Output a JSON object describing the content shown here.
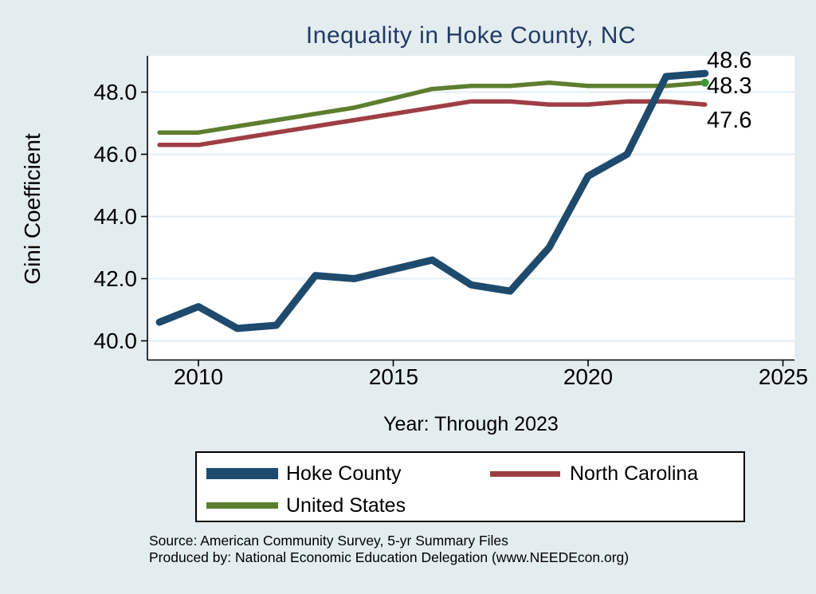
{
  "background_color": "#e3edf0",
  "title": "Inequality in Hoke County, NC",
  "title_color": "#233a64",
  "y_axis": {
    "label": "Gini Coefficient",
    "ticks": [
      "48.0",
      "46.0",
      "44.0",
      "42.0",
      "40.0"
    ],
    "tick_values": [
      48,
      46,
      44,
      42,
      40
    ]
  },
  "x_axis": {
    "label": "Year: Through 2023",
    "ticks": [
      "2010",
      "2015",
      "2020",
      "2025"
    ],
    "tick_values": [
      2010,
      2015,
      2020,
      2025
    ]
  },
  "legend": {
    "items": [
      {
        "label": "Hoke County",
        "color": "#1E4A6E"
      },
      {
        "label": "North Carolina",
        "color": "#9E3E44"
      },
      {
        "label": "United States",
        "color": "#5D7E2F"
      }
    ]
  },
  "source": {
    "line1": "Source: American Community Survey, 5-yr Summary Files",
    "line2": "Produced by: National Economic Education Delegation (www.NEEDEcon.org)"
  },
  "chart_data": {
    "type": "line",
    "title": "Inequality in Hoke County, NC",
    "xlabel": "Year: Through 2023",
    "ylabel": "Gini Coefficient",
    "x": [
      2009,
      2010,
      2011,
      2012,
      2013,
      2014,
      2015,
      2016,
      2017,
      2018,
      2019,
      2020,
      2021,
      2022,
      2023
    ],
    "series": [
      {
        "name": "Hoke County",
        "color": "#1E4A6E",
        "line_width": 9,
        "values": [
          40.6,
          41.1,
          40.4,
          40.5,
          42.1,
          42.0,
          42.3,
          42.6,
          41.8,
          41.6,
          43.0,
          45.3,
          46.0,
          48.5,
          48.6
        ],
        "end_label": "48.6",
        "end_marker": false
      },
      {
        "name": "North Carolina",
        "color": "#9E3E44",
        "line_width": 5.5,
        "values": [
          46.3,
          46.3,
          46.5,
          46.7,
          46.9,
          47.1,
          47.3,
          47.5,
          47.7,
          47.7,
          47.6,
          47.6,
          47.7,
          47.7,
          47.6
        ],
        "end_label": "47.6",
        "end_marker": false
      },
      {
        "name": "United States",
        "color": "#5D7E2F",
        "line_width": 5.5,
        "values": [
          46.7,
          46.7,
          46.9,
          47.1,
          47.3,
          47.5,
          47.8,
          48.1,
          48.2,
          48.2,
          48.3,
          48.2,
          48.2,
          48.2,
          48.3
        ],
        "end_label": "48.3",
        "end_marker": true,
        "end_marker_color": "#3a9a3a"
      }
    ],
    "ylim": [
      39.4,
      49.2
    ],
    "xlim": [
      2008.7,
      2025.3
    ],
    "grid": true,
    "gridline_color": "#e2edf4",
    "legend_position": "bottom"
  }
}
